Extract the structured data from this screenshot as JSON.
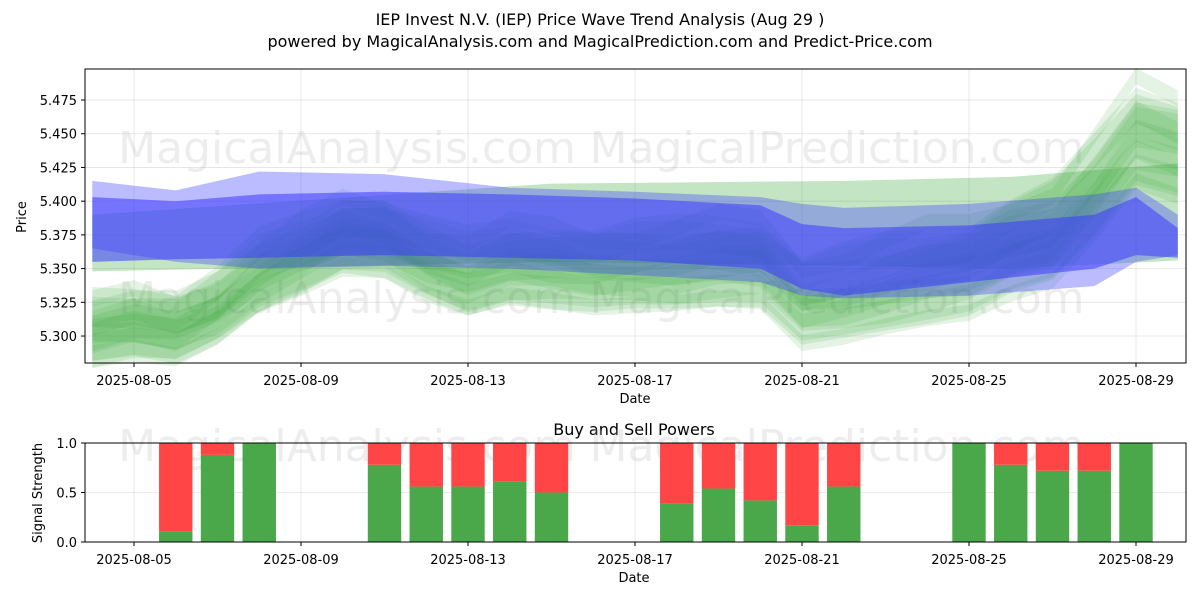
{
  "title_line1": "IEP Invest N.V. (IEP) Price Wave Trend Analysis (Aug 29 )",
  "title_line2": "powered by MagicalAnalysis.com and MagicalPrediction.com and Predict-Price.com",
  "watermarks": [
    "MagicalAnalysis.com",
    "MagicalPrediction.com"
  ],
  "colors": {
    "green": "#2ca02c",
    "blue": "#3b3bff",
    "buy": "#4aa84a",
    "sell": "#ff4545"
  },
  "chart_data": [
    {
      "type": "area",
      "xlabel": "Date",
      "ylabel": "Price",
      "x_range": [
        "2025-08-04",
        "2025-08-30"
      ],
      "ylim": [
        5.28,
        5.498
      ],
      "xticks": [
        "2025-08-05",
        "2025-08-09",
        "2025-08-13",
        "2025-08-17",
        "2025-08-21",
        "2025-08-25",
        "2025-08-29"
      ],
      "yticks": [
        "5.300",
        "5.325",
        "5.350",
        "5.375",
        "5.400",
        "5.425",
        "5.450",
        "5.475"
      ],
      "grid": true,
      "blue_band": {
        "x": [
          "2025-08-04",
          "2025-08-06",
          "2025-08-08",
          "2025-08-11",
          "2025-08-14",
          "2025-08-17",
          "2025-08-20",
          "2025-08-21",
          "2025-08-22",
          "2025-08-25",
          "2025-08-28",
          "2025-08-29",
          "2025-08-30"
        ],
        "upper": [
          5.403,
          5.4,
          5.405,
          5.407,
          5.405,
          5.402,
          5.397,
          5.383,
          5.38,
          5.382,
          5.39,
          5.403,
          5.38
        ],
        "lower": [
          5.355,
          5.357,
          5.358,
          5.36,
          5.358,
          5.356,
          5.35,
          5.335,
          5.33,
          5.34,
          5.35,
          5.36,
          5.358
        ],
        "outer_upper": [
          5.415,
          5.408,
          5.422,
          5.42,
          5.41,
          5.407,
          5.403,
          5.398,
          5.395,
          5.398,
          5.405,
          5.41,
          5.39
        ],
        "outer_lower": [
          5.365,
          5.355,
          5.35,
          5.352,
          5.35,
          5.345,
          5.34,
          5.33,
          5.328,
          5.33,
          5.337,
          5.355,
          5.36
        ]
      },
      "green_trend": {
        "x": [
          "2025-08-04",
          "2025-08-05",
          "2025-08-06",
          "2025-08-07",
          "2025-08-08",
          "2025-08-09",
          "2025-08-10",
          "2025-08-11",
          "2025-08-12",
          "2025-08-13",
          "2025-08-14",
          "2025-08-15",
          "2025-08-16",
          "2025-08-17",
          "2025-08-18",
          "2025-08-19",
          "2025-08-20",
          "2025-08-21",
          "2025-08-22",
          "2025-08-23",
          "2025-08-24",
          "2025-08-25",
          "2025-08-26",
          "2025-08-27",
          "2025-08-28",
          "2025-08-29",
          "2025-08-30"
        ],
        "values": [
          5.305,
          5.31,
          5.305,
          5.32,
          5.345,
          5.36,
          5.375,
          5.372,
          5.355,
          5.345,
          5.355,
          5.352,
          5.348,
          5.35,
          5.352,
          5.356,
          5.355,
          5.325,
          5.33,
          5.338,
          5.345,
          5.35,
          5.365,
          5.375,
          5.41,
          5.45,
          5.44
        ]
      }
    },
    {
      "type": "bar",
      "title": "Buy and Sell Powers",
      "xlabel": "Date",
      "ylabel": "Signal Strength",
      "ylim": [
        0,
        1
      ],
      "yticks": [
        "0.0",
        "0.5",
        "1.0"
      ],
      "xticks": [
        "2025-08-05",
        "2025-08-09",
        "2025-08-13",
        "2025-08-17",
        "2025-08-21",
        "2025-08-25",
        "2025-08-29"
      ],
      "categories": [
        "2025-08-06",
        "2025-08-07",
        "2025-08-08",
        "2025-08-11",
        "2025-08-12",
        "2025-08-13",
        "2025-08-14",
        "2025-08-15",
        "2025-08-18",
        "2025-08-19",
        "2025-08-20",
        "2025-08-21",
        "2025-08-22",
        "2025-08-25",
        "2025-08-26",
        "2025-08-27",
        "2025-08-28",
        "2025-08-29"
      ],
      "series": [
        {
          "name": "Buy",
          "values": [
            0.11,
            0.88,
            1.0,
            0.78,
            0.56,
            0.56,
            0.61,
            0.5,
            0.39,
            0.54,
            0.42,
            0.17,
            0.56,
            1.0,
            0.78,
            0.72,
            0.72,
            1.0
          ]
        },
        {
          "name": "Sell",
          "values": [
            0.89,
            0.12,
            0.0,
            0.22,
            0.44,
            0.44,
            0.39,
            0.5,
            0.61,
            0.46,
            0.58,
            0.83,
            0.44,
            0.0,
            0.22,
            0.28,
            0.28,
            0.0
          ]
        }
      ]
    }
  ]
}
